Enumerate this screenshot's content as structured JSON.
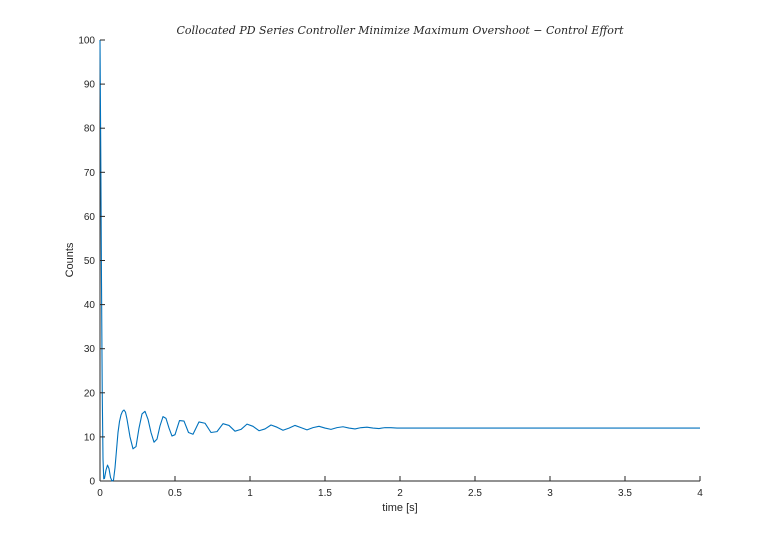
{
  "chart_data": {
    "type": "line",
    "title": "Collocated PD Series Controller Minimize Maximum Overshoot − Control Effort",
    "xlabel": "time [s]",
    "ylabel": "Counts",
    "xlim": [
      0,
      4
    ],
    "ylim": [
      0,
      100
    ],
    "xticks": [
      0,
      0.5,
      1,
      1.5,
      2,
      2.5,
      3,
      3.5,
      4
    ],
    "xtick_labels": [
      "0",
      "0.5",
      "1",
      "1.5",
      "2",
      "2.5",
      "3",
      "3.5",
      "4"
    ],
    "yticks": [
      0,
      10,
      20,
      30,
      40,
      50,
      60,
      70,
      80,
      90,
      100
    ],
    "ytick_labels": [
      "0",
      "10",
      "20",
      "30",
      "40",
      "50",
      "60",
      "70",
      "80",
      "90",
      "100"
    ],
    "grid": false,
    "colors": {
      "series": "#0072bd",
      "axis": "#262626"
    },
    "series": [
      {
        "x": [
          0,
          0.005,
          0.01,
          0.015,
          0.02,
          0.025,
          0.03,
          0.04,
          0.05,
          0.06,
          0.07,
          0.08,
          0.09,
          0.1,
          0.11,
          0.12,
          0.13,
          0.14,
          0.15,
          0.16,
          0.17,
          0.18,
          0.19,
          0.2,
          0.22,
          0.24,
          0.26,
          0.28,
          0.3,
          0.32,
          0.34,
          0.36,
          0.38,
          0.4,
          0.42,
          0.44,
          0.46,
          0.48,
          0.5,
          0.53,
          0.56,
          0.59,
          0.62,
          0.66,
          0.7,
          0.74,
          0.78,
          0.82,
          0.86,
          0.9,
          0.94,
          0.98,
          1.02,
          1.06,
          1.1,
          1.14,
          1.18,
          1.22,
          1.26,
          1.3,
          1.34,
          1.38,
          1.42,
          1.46,
          1.5,
          1.54,
          1.58,
          1.62,
          1.66,
          1.7,
          1.74,
          1.78,
          1.82,
          1.86,
          1.9,
          1.94,
          1.98,
          2.05,
          2.15,
          2.25,
          2.35,
          2.5,
          2.75,
          3.0,
          3.25,
          3.5,
          3.75,
          4.0
        ],
        "y": [
          100,
          75,
          45,
          20,
          5,
          0.5,
          0.6,
          2.5,
          3.6,
          2.8,
          0.8,
          0,
          0.2,
          3,
          7,
          11,
          13.5,
          15,
          15.8,
          16.1,
          15.6,
          14,
          12,
          10,
          7.3,
          7.8,
          12,
          15.2,
          15.8,
          14,
          11,
          8.8,
          9.5,
          12.5,
          14.6,
          14.2,
          12,
          10.2,
          10.5,
          13.7,
          13.6,
          11,
          10.6,
          13.4,
          13.1,
          11,
          11.2,
          13,
          12.6,
          11.3,
          11.7,
          12.9,
          12.4,
          11.4,
          11.8,
          12.7,
          12.2,
          11.5,
          12,
          12.6,
          12.1,
          11.6,
          12.1,
          12.4,
          12,
          11.7,
          12.1,
          12.3,
          12,
          11.8,
          12.1,
          12.2,
          12,
          11.9,
          12.1,
          12.1,
          12,
          12,
          12,
          12,
          12,
          12,
          12,
          12,
          12,
          12,
          12,
          12
        ]
      }
    ]
  }
}
